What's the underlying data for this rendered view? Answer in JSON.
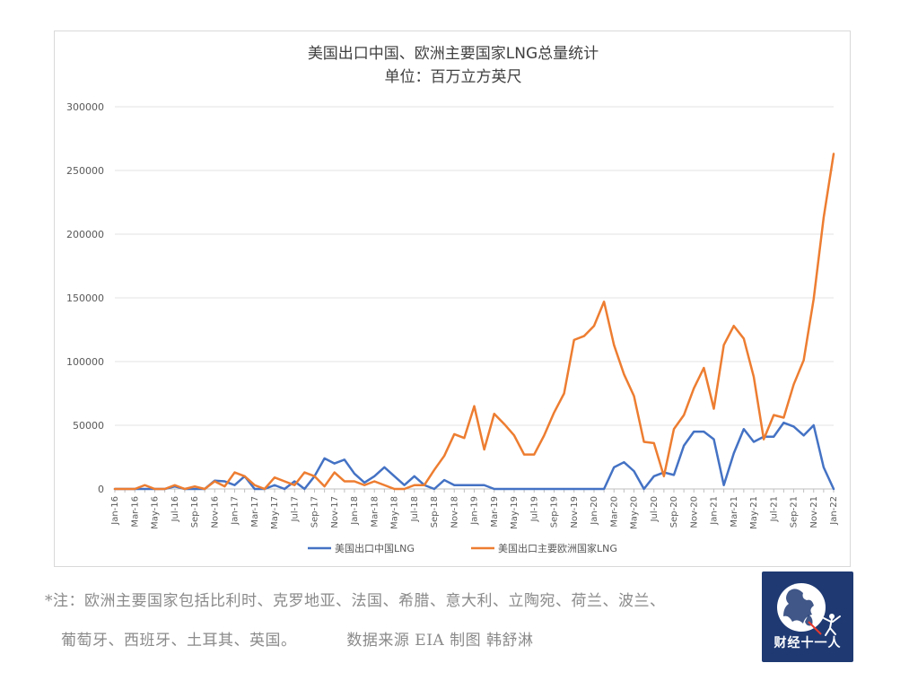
{
  "chart_data": {
    "type": "line",
    "title": "美国出口中国、欧洲主要国家LNG总量统计",
    "subtitle": "单位：百万立方英尺",
    "xlabel": "",
    "ylabel": "",
    "ylim": [
      0,
      300000
    ],
    "yticks": [
      "0",
      "50000",
      "100000",
      "150000",
      "200000",
      "250000",
      "300000"
    ],
    "grid": "horizontal",
    "legend_position": "bottom",
    "xtick_labels": [
      "Jan-16",
      "Mar-16",
      "May-16",
      "Jul-16",
      "Sep-16",
      "Nov-16",
      "Jan-17",
      "Mar-17",
      "May-17",
      "Jul-17",
      "Sep-17",
      "Nov-17",
      "Jan-18",
      "Mar-18",
      "May-18",
      "Jul-18",
      "Sep-18",
      "Nov-18",
      "Jan-19",
      "Mar-19",
      "May-19",
      "Jul-19",
      "Sep-19",
      "Nov-19",
      "Jan-20",
      "Mar-20",
      "May-20",
      "Jul-20",
      "Sep-20",
      "Nov-20",
      "Jan-21",
      "Mar-21",
      "May-21",
      "Jul-21",
      "Sep-21",
      "Nov-21",
      "Jan-22"
    ],
    "x": [
      "Jan-16",
      "Feb-16",
      "Mar-16",
      "Apr-16",
      "May-16",
      "Jun-16",
      "Jul-16",
      "Aug-16",
      "Sep-16",
      "Oct-16",
      "Nov-16",
      "Dec-16",
      "Jan-17",
      "Feb-17",
      "Mar-17",
      "Apr-17",
      "May-17",
      "Jun-17",
      "Jul-17",
      "Aug-17",
      "Sep-17",
      "Oct-17",
      "Nov-17",
      "Dec-17",
      "Jan-18",
      "Feb-18",
      "Mar-18",
      "Apr-18",
      "May-18",
      "Jun-18",
      "Jul-18",
      "Aug-18",
      "Sep-18",
      "Oct-18",
      "Nov-18",
      "Dec-18",
      "Jan-19",
      "Feb-19",
      "Mar-19",
      "Apr-19",
      "May-19",
      "Jun-19",
      "Jul-19",
      "Aug-19",
      "Sep-19",
      "Oct-19",
      "Nov-19",
      "Dec-19",
      "Jan-20",
      "Feb-20",
      "Mar-20",
      "Apr-20",
      "May-20",
      "Jun-20",
      "Jul-20",
      "Aug-20",
      "Sep-20",
      "Oct-20",
      "Nov-20",
      "Dec-20",
      "Jan-21",
      "Feb-21",
      "Mar-21",
      "Apr-21",
      "May-21",
      "Jun-21",
      "Jul-21",
      "Aug-21",
      "Sep-21",
      "Oct-21",
      "Nov-21",
      "Dec-21",
      "Jan-22"
    ],
    "series": [
      {
        "name": "美国出口中国LNG",
        "color": "#4472c4",
        "values": [
          0,
          0,
          0,
          0,
          0,
          0,
          2000,
          0,
          0,
          0,
          6500,
          6000,
          3000,
          10000,
          0,
          0,
          3000,
          0,
          6000,
          0,
          10000,
          24000,
          20000,
          23000,
          12000,
          5000,
          10000,
          17000,
          10000,
          3000,
          10000,
          3000,
          0,
          7000,
          3000,
          3000,
          3000,
          3000,
          0,
          0,
          0,
          0,
          0,
          0,
          0,
          0,
          0,
          0,
          0,
          0,
          17000,
          21000,
          14000,
          0,
          10000,
          13000,
          11000,
          34000,
          45000,
          45000,
          39000,
          3000,
          28000,
          47000,
          37000,
          41000,
          41000,
          52000,
          49000,
          42000,
          50000,
          17000,
          0
        ]
      },
      {
        "name": "美国出口主要欧洲国家LNG",
        "color": "#ed7d31",
        "values": [
          0,
          0,
          0,
          3000,
          0,
          0,
          3000,
          0,
          2000,
          0,
          6000,
          2000,
          13000,
          10000,
          3000,
          0,
          9000,
          6000,
          3000,
          13000,
          10000,
          2000,
          13000,
          6000,
          6000,
          3000,
          6000,
          3000,
          0,
          0,
          3000,
          3000,
          15000,
          26000,
          43000,
          40000,
          65000,
          31000,
          59000,
          51000,
          42000,
          27000,
          27000,
          42000,
          60000,
          75000,
          117000,
          120000,
          128000,
          147000,
          113000,
          90000,
          73000,
          37000,
          36000,
          10000,
          47000,
          58000,
          79000,
          95000,
          63000,
          113000,
          128000,
          118000,
          88000,
          39000,
          58000,
          56000,
          82000,
          101000,
          149000,
          213000,
          263000
        ]
      }
    ]
  },
  "footnote": {
    "line1": "*注：欧洲主要国家包括比利时、克罗地亚、法国、希腊、意大利、立陶宛、荷兰、波兰、",
    "line2": "葡萄牙、西班牙、土耳其、英国。",
    "source": "数据来源 EIA 制图 韩舒淋"
  },
  "logo": {
    "text": "财经十一人",
    "background": "#1f3a73"
  }
}
